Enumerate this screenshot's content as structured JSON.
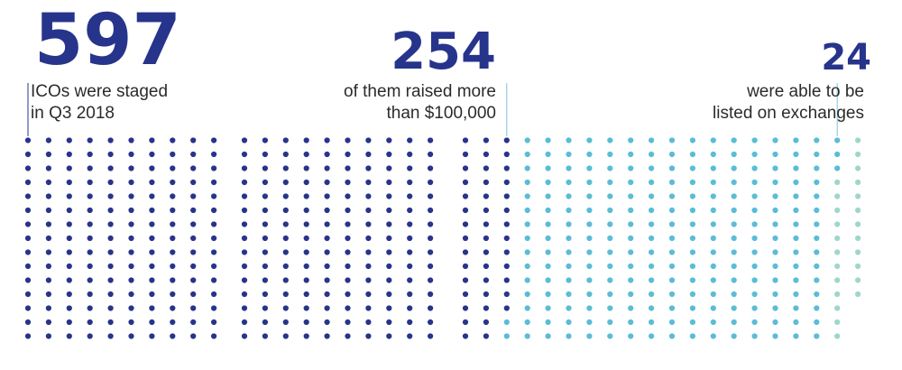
{
  "chart_data": {
    "type": "dot-matrix",
    "total": 597,
    "colors": {
      "all": "#27348b",
      "raised": "#5bbcd6",
      "listed": "#9fd6cc",
      "guide": "#7ec3dc"
    },
    "stats": [
      {
        "value": "597",
        "caption_lines": [
          "ICOs were staged",
          "in Q3 2018"
        ],
        "count": 597
      },
      {
        "value": "254",
        "caption_lines": [
          "of them raised more",
          "than $100,000"
        ],
        "count": 254
      },
      {
        "value": "24",
        "caption_lines": [
          "were able to be",
          "listed on exchanges"
        ],
        "count": 24
      }
    ]
  }
}
